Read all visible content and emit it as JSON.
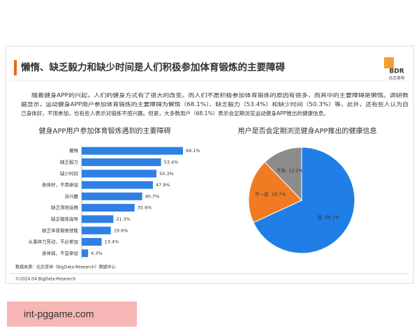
{
  "title": "懒惰、缺乏毅力和缺少时间是人们积极参加体育锻炼的主要障碍",
  "logo": {
    "mark": "BDR",
    "name": "比达咨询"
  },
  "body": [
    "随着健身APP的兴起，人们的健身方式有了很大的改变。而人们不愿积极参加体育锻炼的原因有很多，而其中的主要障碍是懒惰。调研数",
    "据显示，运动健身APP用户参加体育锻炼的主要障碍为懒惰（68.1%）、缺乏毅力（53.4%）和缺少时间（50.3%）等，此外，还有些人认为自",
    "己身体好，不用参加，也有些人表示对锻炼不感兴趣。但是，大多数用户（68.1%）表示会定期浏览运动健身APP推出的健康信息。"
  ],
  "source": "数据来源：比达咨询（BigData-Research）数据中心",
  "copyright": "©2024.04 BigData-Research",
  "watermark": "int-pggame.com",
  "chart_data": [
    {
      "type": "bar",
      "orientation": "horizontal",
      "title": "健身APP用户参加体育锻炼遇到的主要障碍",
      "categories": [
        "懒惰",
        "缺乏毅力",
        "缺少时间",
        "身体好，不用参加",
        "没兴趣",
        "缺乏场地设施",
        "缺乏锻炼指导",
        "缺乏体育锻炼技能",
        "从事体力劳动，不必参加",
        "身体弱，不宜参加"
      ],
      "values": [
        68.1,
        53.4,
        50.3,
        47.9,
        40.7,
        35.6,
        21.3,
        19.6,
        13.4,
        4.3
      ],
      "value_labels": [
        "68.1%",
        "53.4%",
        "50.3%",
        "47.9%",
        "40.7%",
        "35.6%",
        "21.3%",
        "19.6%",
        "13.4%",
        "4.3%"
      ],
      "color": "#2f80e4",
      "xlim": [
        0,
        70
      ]
    },
    {
      "type": "pie",
      "title": "用户是否会定期浏览健身APP推出的健康信息",
      "values": [
        68.1,
        19.7,
        12.2
      ],
      "value_labels": [
        "是, 68.1%",
        "不一定, 19.7%",
        "不会, 12.2%"
      ],
      "colors": [
        "#1f7fe6",
        "#f07b22",
        "#8c8c8c"
      ]
    }
  ]
}
